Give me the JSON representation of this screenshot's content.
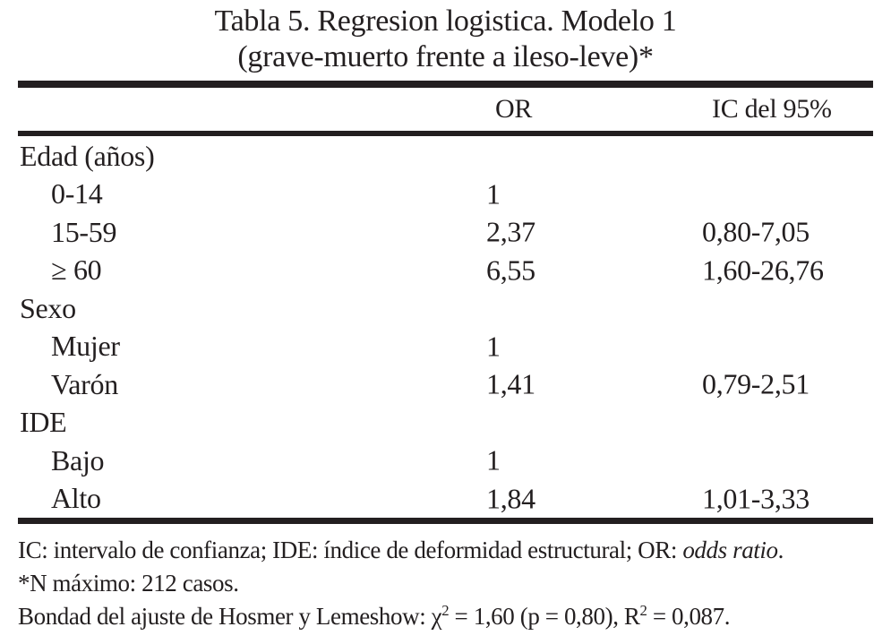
{
  "table": {
    "title_line1": "Tabla 5. Regresion logistica. Modelo 1",
    "title_line2": "(grave-muerto frente a ileso-leve)*",
    "columns": {
      "or": "OR",
      "ic": "IC del 95%"
    },
    "rows": [
      {
        "label": "Edad (años)",
        "group": true,
        "or": "",
        "ic": ""
      },
      {
        "label": "0-14",
        "group": false,
        "or": "1",
        "ic": ""
      },
      {
        "label": "15-59",
        "group": false,
        "or": "2,37",
        "ic": "0,80-7,05"
      },
      {
        "label": "≥ 60",
        "group": false,
        "or": "6,55",
        "ic": "1,60-26,76"
      },
      {
        "label": "Sexo",
        "group": true,
        "or": "",
        "ic": ""
      },
      {
        "label": "Mujer",
        "group": false,
        "or": "1",
        "ic": ""
      },
      {
        "label": "Varón",
        "group": false,
        "or": "1,41",
        "ic": "0,79-2,51"
      },
      {
        "label": "IDE",
        "group": true,
        "or": "",
        "ic": ""
      },
      {
        "label": "Bajo",
        "group": false,
        "or": "1",
        "ic": ""
      },
      {
        "label": "Alto",
        "group": false,
        "or": "1,84",
        "ic": "1,01-3,33"
      }
    ],
    "footnotes": {
      "line1_pre": "IC: intervalo de confianza; IDE: índice de deformidad estructural; OR: ",
      "line1_italic": "odds ratio",
      "line1_post": ".",
      "line2": "*N máximo: 212 casos.",
      "line3_pre": "Bondad del ajuste de Hosmer y Lemeshow: χ",
      "line3_sup1": "2",
      "line3_mid": " = 1,60 (p = 0,80), R",
      "line3_sup2": "2",
      "line3_post": " = 0,087."
    },
    "colors": {
      "text": "#231f20",
      "background": "#ffffff"
    }
  }
}
